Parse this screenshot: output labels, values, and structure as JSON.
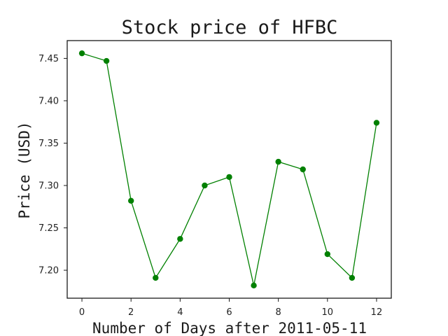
{
  "chart_data": {
    "type": "line",
    "title": "Stock price of HFBC",
    "xlabel": "Number of Days after 2011-05-11",
    "ylabel": "Price (USD)",
    "x": [
      0,
      1,
      2,
      3,
      4,
      5,
      6,
      7,
      8,
      9,
      10,
      11,
      12
    ],
    "series": [
      {
        "values": [
          7.456,
          7.447,
          7.282,
          7.191,
          7.237,
          7.3,
          7.31,
          7.182,
          7.328,
          7.319,
          7.219,
          7.191,
          7.374
        ],
        "color": "#008000",
        "marker": "circle"
      }
    ],
    "xlim": [
      -0.6,
      12.6
    ],
    "ylim": [
      7.167,
      7.471
    ],
    "xticks": [
      0,
      2,
      4,
      6,
      8,
      10,
      12
    ],
    "yticks": [
      7.2,
      7.25,
      7.3,
      7.35,
      7.4,
      7.45
    ],
    "xtick_labels": [
      "0",
      "2",
      "4",
      "6",
      "8",
      "10",
      "12"
    ],
    "ytick_labels": [
      "7.20",
      "7.25",
      "7.30",
      "7.35",
      "7.40",
      "7.45"
    ],
    "grid": false,
    "legend": "none"
  }
}
